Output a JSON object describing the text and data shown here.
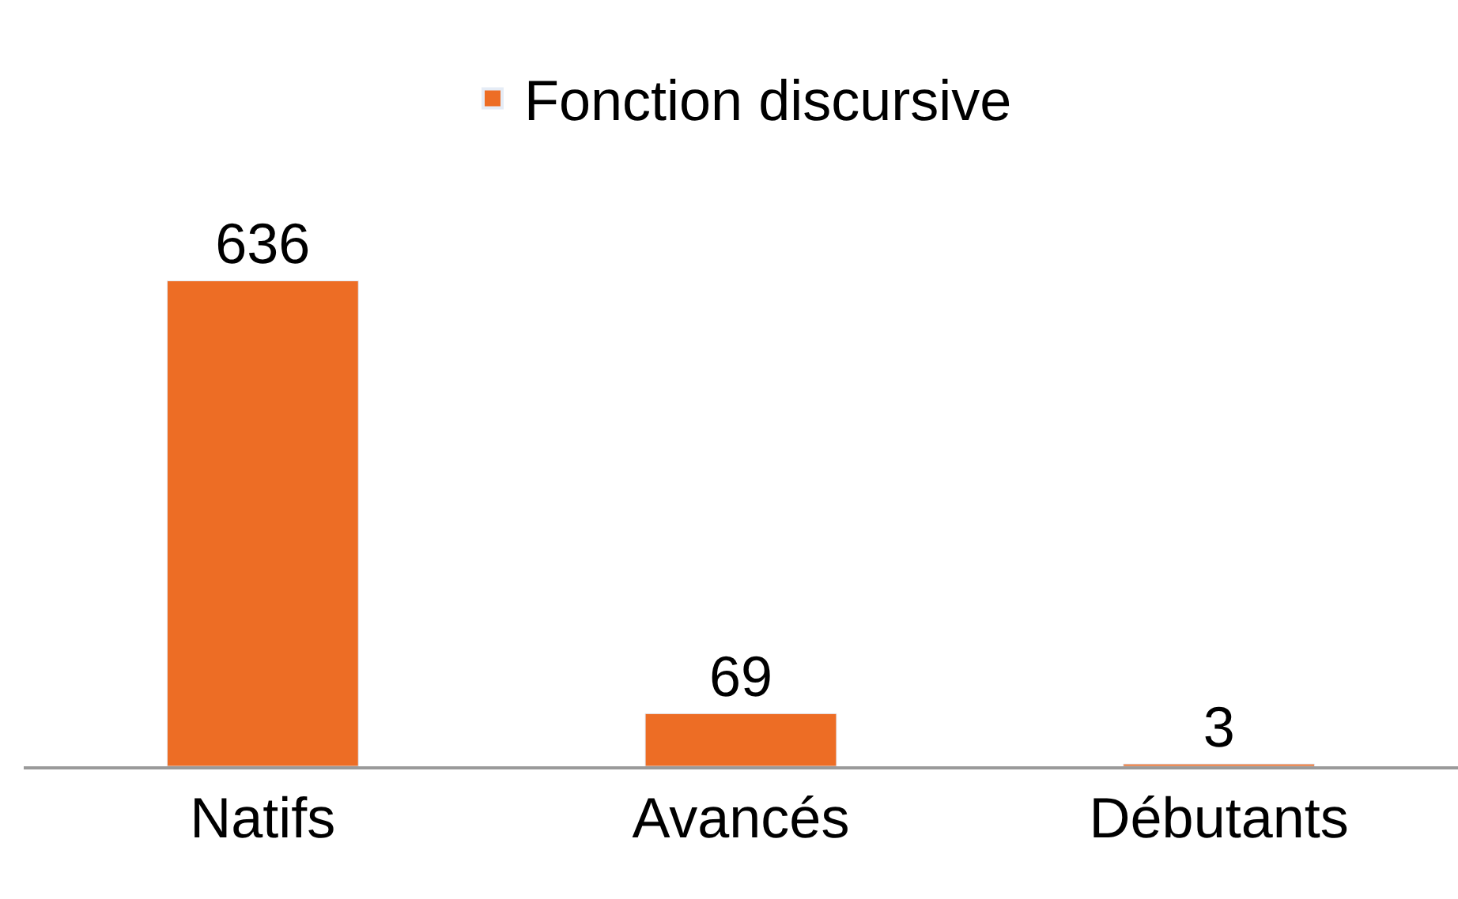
{
  "chart_data": {
    "type": "bar",
    "categories": [
      "Natifs",
      "Avancés",
      "Débutants"
    ],
    "series": [
      {
        "name": "Fonction discursive",
        "color": "#ed6d25",
        "values": [
          636,
          69,
          3
        ]
      }
    ],
    "data_labels": true,
    "legend": "top",
    "tick_labels": "x"
  }
}
